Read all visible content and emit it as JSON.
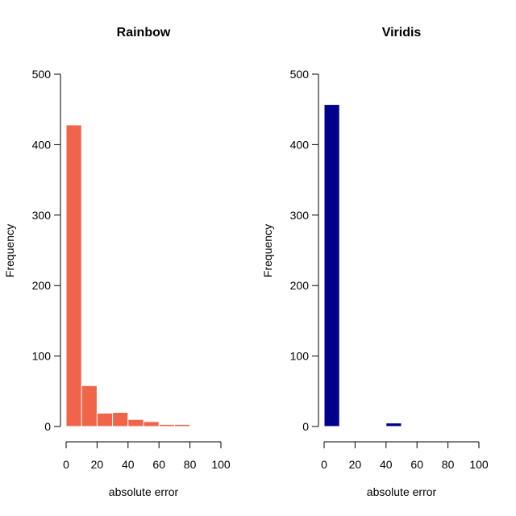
{
  "chart_data": [
    {
      "type": "bar",
      "title": "Rainbow",
      "xlabel": "absolute error",
      "ylabel": "Frequency",
      "bar_color": "#F06449",
      "bar_border": "#FFFFFF",
      "xlim": [
        0,
        100
      ],
      "ylim": [
        0,
        500
      ],
      "x_ticks": [
        "0",
        "20",
        "40",
        "60",
        "80",
        "100"
      ],
      "y_ticks": [
        "0",
        "100",
        "200",
        "300",
        "400",
        "500"
      ],
      "bins": [
        {
          "from": 0,
          "to": 10,
          "count": 428
        },
        {
          "from": 10,
          "to": 20,
          "count": 58
        },
        {
          "from": 20,
          "to": 30,
          "count": 19
        },
        {
          "from": 30,
          "to": 40,
          "count": 20
        },
        {
          "from": 40,
          "to": 50,
          "count": 10
        },
        {
          "from": 50,
          "to": 60,
          "count": 7
        },
        {
          "from": 60,
          "to": 70,
          "count": 3
        },
        {
          "from": 70,
          "to": 80,
          "count": 3
        }
      ]
    },
    {
      "type": "bar",
      "title": "Viridis",
      "xlabel": "absolute error",
      "ylabel": "Frequency",
      "bar_color": "#00008B",
      "bar_border": "#FFFFFF",
      "xlim": [
        0,
        100
      ],
      "ylim": [
        0,
        500
      ],
      "x_ticks": [
        "0",
        "20",
        "40",
        "60",
        "80",
        "100"
      ],
      "y_ticks": [
        "0",
        "100",
        "200",
        "300",
        "400",
        "500"
      ],
      "bins": [
        {
          "from": 0,
          "to": 10,
          "count": 457
        },
        {
          "from": 10,
          "to": 20,
          "count": 0
        },
        {
          "from": 20,
          "to": 30,
          "count": 0
        },
        {
          "from": 30,
          "to": 40,
          "count": 1
        },
        {
          "from": 40,
          "to": 50,
          "count": 5
        }
      ]
    }
  ]
}
